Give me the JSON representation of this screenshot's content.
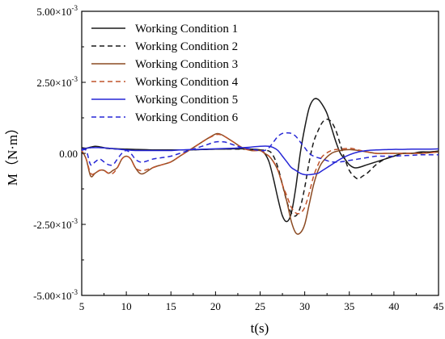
{
  "chart_data": {
    "type": "line",
    "xlabel": "t(s)",
    "ylabel": "M（N·m）",
    "xlim": [
      5,
      45
    ],
    "ylim": [
      -0.005,
      0.005
    ],
    "x_ticks": [
      5,
      10,
      15,
      20,
      25,
      30,
      35,
      40,
      45
    ],
    "x_tick_labels": [
      "5",
      "10",
      "15",
      "20",
      "25",
      "30",
      "35",
      "40",
      "45"
    ],
    "y_ticks": [
      -0.005,
      -0.0025,
      0,
      0.0025,
      0.005
    ],
    "y_tick_labels": [
      {
        "mantissa": "-5.00×10",
        "exp": "-3"
      },
      {
        "mantissa": "-2.50×10",
        "exp": "-3"
      },
      {
        "mantissa": "0.00",
        "exp": ""
      },
      {
        "mantissa": "2.50×10",
        "exp": "-3"
      },
      {
        "mantissa": "5.00×10",
        "exp": "-3"
      }
    ],
    "grid": false,
    "legend_position": "top-left",
    "series": [
      {
        "name": "Working Condition 1",
        "color": "#1a1a1a",
        "dash": "solid",
        "x": [
          5,
          5.5,
          6,
          6.5,
          7,
          7.5,
          8,
          9,
          10,
          11,
          12,
          13,
          14,
          15,
          16,
          17,
          18,
          19,
          20,
          21,
          22,
          23,
          24,
          25,
          25.5,
          26,
          26.5,
          27,
          27.5,
          28,
          28.5,
          29,
          29.5,
          30,
          30.5,
          31,
          31.5,
          32,
          32.5,
          33,
          33.5,
          34,
          34.5,
          35,
          35.5,
          36,
          37,
          38,
          39,
          40,
          41,
          42,
          43,
          44,
          45
        ],
        "y": [
          0.0002,
          0.00018,
          0.00022,
          0.00025,
          0.00023,
          0.0002,
          0.00018,
          0.00016,
          0.00015,
          0.00014,
          0.00013,
          0.00012,
          0.00012,
          0.00012,
          0.00012,
          0.00012,
          0.00013,
          0.00014,
          0.00015,
          0.00015,
          0.00016,
          0.00016,
          0.00015,
          0.00012,
          0.0,
          -0.0003,
          -0.0009,
          -0.0016,
          -0.0022,
          -0.0024,
          -0.0021,
          -0.0012,
          0.0,
          0.0009,
          0.0016,
          0.0019,
          0.0019,
          0.0017,
          0.0014,
          0.0009,
          0.0004,
          0.0,
          -0.0002,
          -0.0004,
          -0.0005,
          -0.0005,
          -0.0004,
          -0.0003,
          -0.0002,
          -0.0001,
          0.0,
          0.0,
          5e-05,
          5e-05,
          8e-05
        ]
      },
      {
        "name": "Working Condition 2",
        "color": "#1a1a1a",
        "dash": "dashed",
        "x": [
          5,
          5.5,
          6,
          6.5,
          7,
          7.5,
          8,
          9,
          10,
          11,
          12,
          13,
          14,
          15,
          16,
          17,
          18,
          19,
          20,
          21,
          22,
          23,
          24,
          25,
          26,
          26.5,
          27,
          27.5,
          28,
          28.5,
          29,
          29.5,
          30,
          30.5,
          31,
          31.5,
          32,
          32.5,
          33,
          33.5,
          34,
          34.5,
          35,
          35.5,
          36,
          36.5,
          37,
          38,
          39,
          40,
          41,
          42,
          43,
          44,
          45
        ],
        "y": [
          0.00018,
          0.00016,
          0.0002,
          0.00024,
          0.00022,
          0.00019,
          0.00017,
          0.00015,
          0.00014,
          0.00013,
          0.00012,
          0.00012,
          0.00012,
          0.00012,
          0.00012,
          0.00012,
          0.00013,
          0.00014,
          0.00015,
          0.00015,
          0.00015,
          0.00015,
          0.00014,
          0.00012,
          8e-05,
          -0.0001,
          -0.0005,
          -0.0011,
          -0.0017,
          -0.0021,
          -0.0022,
          -0.0019,
          -0.0012,
          -0.0003,
          0.0004,
          0.0008,
          0.0011,
          0.0012,
          0.0011,
          0.0008,
          0.0003,
          -0.0002,
          -0.0006,
          -0.0008,
          -0.0009,
          -0.0008,
          -0.0007,
          -0.0004,
          -0.0002,
          -0.0001,
          0.0,
          0.0,
          3e-05,
          5e-05,
          6e-05
        ]
      },
      {
        "name": "Working Condition 3",
        "color": "#8b4a22",
        "dash": "solid",
        "x": [
          5,
          5.5,
          6,
          6.5,
          7,
          7.5,
          8,
          8.5,
          9,
          9.5,
          10,
          10.5,
          11,
          11.5,
          12,
          13,
          14,
          15,
          16,
          17,
          18,
          19,
          20,
          20.5,
          21,
          22,
          23,
          24,
          25,
          25.5,
          26,
          26.5,
          27,
          27.5,
          28,
          28.5,
          29,
          29.5,
          30,
          30.5,
          31,
          31.5,
          32,
          33,
          34,
          35,
          35.5,
          36,
          37,
          38,
          39,
          40,
          41,
          42,
          43,
          44,
          45
        ],
        "y": [
          0.0001,
          -0.0002,
          -0.0008,
          -0.0007,
          -0.0006,
          -0.0006,
          -0.0007,
          -0.0006,
          -0.0005,
          -0.0002,
          -0.0001,
          -0.0002,
          -0.0005,
          -0.0007,
          -0.0007,
          -0.0005,
          -0.0004,
          -0.0003,
          -0.0001,
          0.0001,
          0.0003,
          0.0005,
          0.00068,
          0.00068,
          0.0006,
          0.0004,
          0.0002,
          0.0001,
          0.0001,
          0.0,
          -0.0001,
          -0.0003,
          -0.0006,
          -0.0011,
          -0.0017,
          -0.0024,
          -0.0028,
          -0.0028,
          -0.0025,
          -0.0018,
          -0.0011,
          -0.0006,
          -0.0003,
          0.0,
          0.0001,
          0.00013,
          0.00012,
          0.0001,
          5e-05,
          0.0,
          0.0,
          0.0,
          0.0,
          0.0,
          0.0,
          2e-05,
          5e-05
        ]
      },
      {
        "name": "Working Condition 4",
        "color": "#c0532b",
        "dash": "dashed",
        "x": [
          5,
          5.5,
          6,
          6.5,
          7,
          7.5,
          8,
          8.5,
          9,
          9.5,
          10,
          10.5,
          11,
          11.5,
          12,
          13,
          14,
          15,
          16,
          17,
          18,
          19,
          20,
          20.5,
          21,
          22,
          23,
          24,
          25,
          25.5,
          26,
          26.5,
          27,
          27.5,
          28,
          28.5,
          29,
          29.5,
          30,
          30.5,
          31,
          31.5,
          32,
          33,
          34,
          35,
          35.5,
          36,
          37,
          38,
          39,
          40,
          41,
          42,
          43,
          44,
          45
        ],
        "y": [
          0.0001,
          -0.0002,
          -0.0007,
          -0.0007,
          -0.0006,
          -0.0006,
          -0.0007,
          -0.0007,
          -0.0005,
          -0.0002,
          -0.0001,
          -0.0002,
          -0.0005,
          -0.0006,
          -0.0006,
          -0.0005,
          -0.0004,
          -0.0003,
          -0.0001,
          0.0001,
          0.0003,
          0.0005,
          0.00065,
          0.00066,
          0.0006,
          0.0004,
          0.0002,
          0.0001,
          0.0001,
          0.0,
          -0.0001,
          -0.0003,
          -0.0006,
          -0.0011,
          -0.0015,
          -0.0019,
          -0.0021,
          -0.0021,
          -0.0019,
          -0.0014,
          -0.0008,
          -0.0004,
          -0.0001,
          0.0001,
          0.00015,
          0.00018,
          0.00016,
          0.00012,
          5e-05,
          0.0,
          0.0,
          0.0,
          0.0,
          0.0,
          0.0,
          2e-05,
          5e-05
        ]
      },
      {
        "name": "Working Condition 5",
        "color": "#2727d6",
        "dash": "solid",
        "x": [
          5,
          6,
          7,
          8,
          9,
          10,
          11,
          12,
          13,
          14,
          15,
          16,
          17,
          18,
          19,
          20,
          21,
          22,
          23,
          24,
          25,
          26,
          26.5,
          27,
          27.5,
          28,
          28.5,
          29,
          29.5,
          30,
          30.5,
          31,
          31.5,
          32,
          32.5,
          33,
          34,
          35,
          36,
          37,
          38,
          39,
          40,
          41,
          42,
          43,
          44,
          45
        ],
        "y": [
          0.00015,
          0.0002,
          0.0002,
          0.00018,
          0.00015,
          0.00012,
          0.0001,
          0.0001,
          0.0001,
          0.0001,
          0.0001,
          0.00012,
          0.00013,
          0.00014,
          0.00015,
          0.00016,
          0.00017,
          0.00018,
          0.0002,
          0.00022,
          0.00025,
          0.00025,
          0.0002,
          0.0001,
          -0.0001,
          -0.0003,
          -0.0005,
          -0.0006,
          -0.0007,
          -0.00075,
          -0.00075,
          -0.00073,
          -0.0007,
          -0.0006,
          -0.0005,
          -0.0004,
          -0.0002,
          -5e-05,
          5e-05,
          0.0001,
          0.00012,
          0.00013,
          0.00014,
          0.00014,
          0.00015,
          0.00015,
          0.00015,
          0.00016
        ]
      },
      {
        "name": "Working Condition 6",
        "color": "#2727d6",
        "dash": "dashed",
        "x": [
          5,
          5.5,
          6,
          6.5,
          7,
          7.5,
          8,
          8.5,
          9,
          9.5,
          10,
          10.5,
          11,
          11.5,
          12,
          13,
          14,
          15,
          16,
          17,
          18,
          19,
          20,
          21,
          22,
          23,
          24,
          25,
          25.5,
          26,
          26.5,
          27,
          27.5,
          28,
          28.5,
          29,
          29.5,
          30,
          30.5,
          31,
          32,
          33,
          34,
          35,
          36,
          37,
          38,
          39,
          40,
          41,
          42,
          43,
          44,
          45
        ],
        "y": [
          0.0001,
          0.0001,
          -0.0004,
          -0.0003,
          -0.0002,
          -0.0003,
          -0.0004,
          -0.0004,
          -0.0002,
          0.0,
          0.0001,
          0.0,
          -0.0002,
          -0.0003,
          -0.0003,
          -0.0002,
          -0.00015,
          -0.0001,
          0.0,
          0.0001,
          0.0002,
          0.0003,
          0.0004,
          0.0004,
          0.0003,
          0.0002,
          0.00015,
          0.0001,
          0.0001,
          0.0002,
          0.0004,
          0.0006,
          0.0007,
          0.00072,
          0.0007,
          0.0006,
          0.0004,
          0.0002,
          0.0,
          -0.0001,
          -0.0002,
          -0.0003,
          -0.0003,
          -0.00025,
          -0.0002,
          -0.00015,
          -0.0001,
          -0.0001,
          -0.0001,
          -8e-05,
          -7e-05,
          -5e-05,
          -5e-05,
          -5e-05
        ]
      }
    ]
  }
}
